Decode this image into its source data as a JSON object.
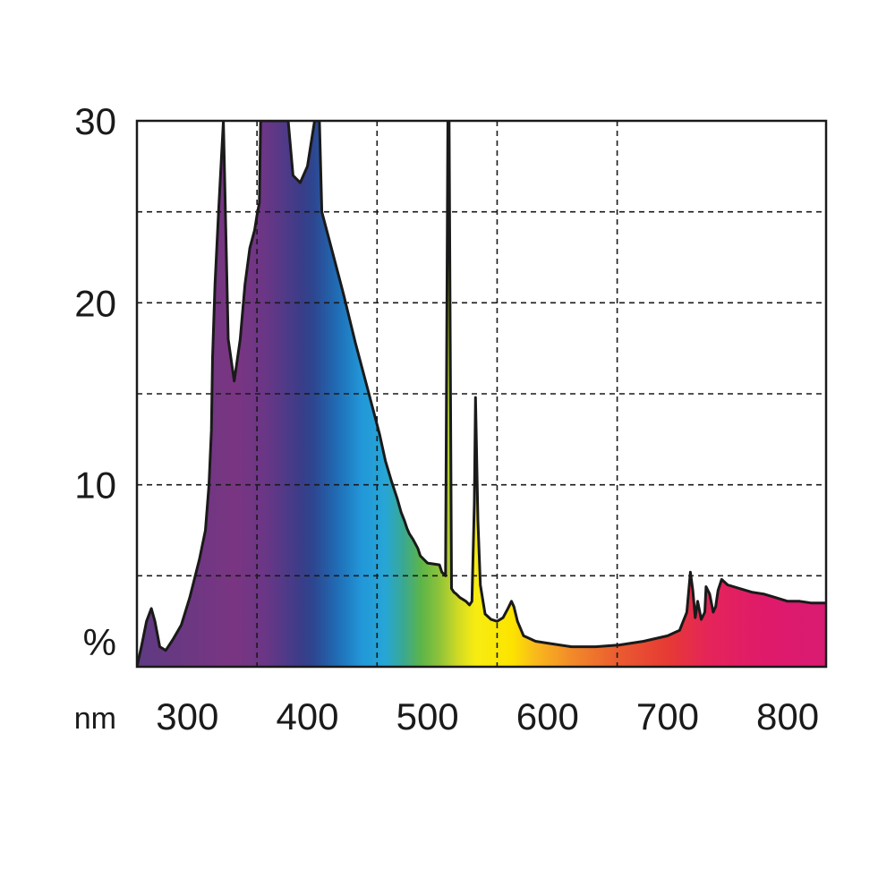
{
  "chart_data": {
    "type": "area",
    "xunit": "nm",
    "yunit": "%",
    "xlim": [
      258,
      832
    ],
    "ylim": [
      0,
      30
    ],
    "grid": true,
    "x_ticks": [
      300,
      400,
      500,
      600,
      700,
      800
    ],
    "x_tick_labels": [
      "300",
      "400",
      "500",
      "600",
      "700",
      "800"
    ],
    "y_ticks": [
      10,
      20,
      30
    ],
    "y_tick_labels": [
      "10",
      "20",
      "30"
    ],
    "x_grid": [
      358,
      458,
      558,
      658
    ],
    "y_grid": [
      5,
      10,
      15,
      20,
      25
    ],
    "series": [
      {
        "x": [
          258,
          262,
          266,
          270,
          273,
          277,
          282,
          288,
          295,
          302,
          310,
          315,
          318,
          320,
          321,
          323,
          326,
          330,
          334,
          339,
          344,
          348,
          352,
          356,
          358,
          360,
          361,
          384,
          388,
          394,
          400,
          406,
          410,
          412,
          420,
          430,
          440,
          450,
          460,
          465,
          470,
          475,
          478,
          481,
          483,
          485,
          488,
          492,
          494,
          500,
          510,
          512,
          515,
          517,
          518,
          520,
          522,
          524,
          527,
          532,
          535,
          537,
          539,
          540,
          542,
          544,
          548,
          553,
          558,
          563,
          567,
          570,
          572,
          575,
          580,
          590,
          600,
          620,
          640,
          660,
          680,
          700,
          710,
          716,
          719,
          721,
          723,
          725,
          728,
          731,
          732,
          735,
          738,
          740,
          742,
          745,
          750,
          760,
          770,
          780,
          790,
          800,
          810,
          820,
          832
        ],
        "y": [
          0,
          1.2,
          2.5,
          3.2,
          2.5,
          1.1,
          0.9,
          1.5,
          2.3,
          3.8,
          5.9,
          7.5,
          10.0,
          13.0,
          17.0,
          21.0,
          25.0,
          30.0,
          18.0,
          15.7,
          18.0,
          21.0,
          23.0,
          24.0,
          24.8,
          25.5,
          30.0,
          30.0,
          27.0,
          26.6,
          27.5,
          30.0,
          30.0,
          25.0,
          23.0,
          20.5,
          17.8,
          15.3,
          12.8,
          11.3,
          10.2,
          9.2,
          8.5,
          8.0,
          7.6,
          7.3,
          7.0,
          6.5,
          6.1,
          5.7,
          5.6,
          5.2,
          5.0,
          30.0,
          30.0,
          4.3,
          4.1,
          4.0,
          3.8,
          3.6,
          3.4,
          3.6,
          9.0,
          14.8,
          8.0,
          4.5,
          2.9,
          2.6,
          2.5,
          2.7,
          3.2,
          3.6,
          3.3,
          2.5,
          1.7,
          1.4,
          1.3,
          1.1,
          1.1,
          1.2,
          1.4,
          1.7,
          2.0,
          3.0,
          5.2,
          4.2,
          2.7,
          3.6,
          2.6,
          3.0,
          4.4,
          4.0,
          3.0,
          3.3,
          4.2,
          4.8,
          4.5,
          4.3,
          4.1,
          4.0,
          3.8,
          3.6,
          3.6,
          3.5,
          3.5
        ]
      }
    ],
    "spectrum_colors": [
      {
        "x": 258,
        "color": "#5e3a82"
      },
      {
        "x": 340,
        "color": "#7a3582"
      },
      {
        "x": 365,
        "color": "#6a3686"
      },
      {
        "x": 395,
        "color": "#3a3d88"
      },
      {
        "x": 405,
        "color": "#2d4690"
      },
      {
        "x": 425,
        "color": "#1f6db5"
      },
      {
        "x": 445,
        "color": "#2297d8"
      },
      {
        "x": 465,
        "color": "#26a6d6"
      },
      {
        "x": 480,
        "color": "#3aa891"
      },
      {
        "x": 495,
        "color": "#5db547"
      },
      {
        "x": 510,
        "color": "#8fc33a"
      },
      {
        "x": 525,
        "color": "#cfd925"
      },
      {
        "x": 540,
        "color": "#f7ec12"
      },
      {
        "x": 570,
        "color": "#fce400"
      },
      {
        "x": 590,
        "color": "#f9b91c"
      },
      {
        "x": 620,
        "color": "#f28a2a"
      },
      {
        "x": 660,
        "color": "#ea5a30"
      },
      {
        "x": 700,
        "color": "#e63a34"
      },
      {
        "x": 735,
        "color": "#e4245a"
      },
      {
        "x": 780,
        "color": "#e01a6a"
      },
      {
        "x": 832,
        "color": "#d81b72"
      }
    ]
  }
}
